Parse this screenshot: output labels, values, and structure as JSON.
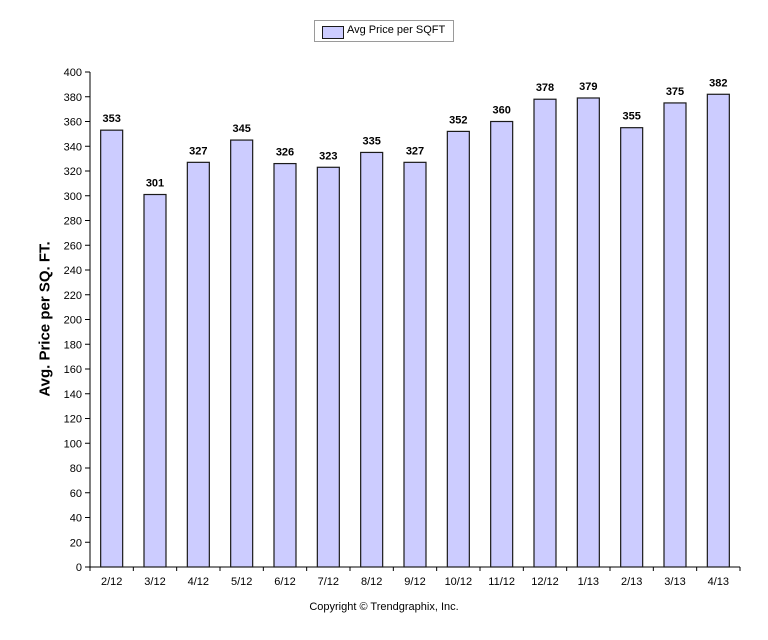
{
  "legend": {
    "label": "Avg Price per SQFT"
  },
  "footer": {
    "copyright": "Copyright © Trendgraphix, Inc."
  },
  "colors": {
    "bar_fill": "#ccccff",
    "bar_stroke": "#1a1a1a",
    "axis": "#000000"
  },
  "chart_data": {
    "type": "bar",
    "title": "",
    "xlabel": "",
    "ylabel": "Avg. Price per SQ. FT.",
    "categories": [
      "2/12",
      "3/12",
      "4/12",
      "5/12",
      "6/12",
      "7/12",
      "8/12",
      "9/12",
      "10/12",
      "11/12",
      "12/12",
      "1/13",
      "2/13",
      "3/13",
      "4/13"
    ],
    "series": [
      {
        "name": "Avg Price per SQFT",
        "values": [
          353,
          301,
          327,
          345,
          326,
          323,
          335,
          327,
          352,
          360,
          378,
          379,
          355,
          375,
          382
        ]
      }
    ],
    "ylim": [
      0,
      400
    ],
    "yticks": [
      0,
      20,
      40,
      60,
      80,
      100,
      120,
      140,
      160,
      180,
      200,
      220,
      240,
      260,
      280,
      300,
      320,
      340,
      360,
      380,
      400
    ],
    "grid": false,
    "legend_position": "top-center",
    "data_labels": true
  }
}
